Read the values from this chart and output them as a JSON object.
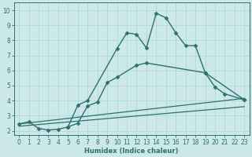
{
  "title": "",
  "xlabel": "Humidex (Indice chaleur)",
  "ylabel": "",
  "background_color": "#cce8e8",
  "grid_color": "#b0d8d8",
  "line_color": "#2d7070",
  "xlim": [
    -0.5,
    23.5
  ],
  "ylim": [
    1.7,
    10.5
  ],
  "xticks": [
    0,
    1,
    2,
    3,
    4,
    5,
    6,
    7,
    8,
    9,
    10,
    11,
    12,
    13,
    14,
    15,
    16,
    17,
    18,
    19,
    20,
    21,
    22,
    23
  ],
  "yticks": [
    2,
    3,
    4,
    5,
    6,
    7,
    8,
    9,
    10
  ],
  "series": [
    {
      "x": [
        0,
        1,
        2,
        3,
        4,
        5,
        6,
        7,
        10,
        11,
        12,
        13,
        14,
        15,
        16,
        17,
        18,
        19,
        23
      ],
      "y": [
        2.45,
        2.6,
        2.15,
        2.05,
        2.1,
        2.25,
        3.7,
        4.0,
        7.45,
        8.5,
        8.4,
        7.5,
        9.8,
        9.5,
        8.5,
        7.65,
        7.65,
        5.85,
        4.05
      ],
      "marker": "D",
      "markersize": 2.5,
      "linewidth": 1.0
    },
    {
      "x": [
        5,
        6,
        7,
        8,
        9,
        10,
        12,
        13,
        19,
        20,
        21,
        23
      ],
      "y": [
        2.25,
        2.5,
        3.65,
        3.9,
        5.2,
        5.55,
        6.35,
        6.5,
        5.85,
        4.9,
        4.45,
        4.05
      ],
      "marker": "D",
      "markersize": 2.5,
      "linewidth": 1.0
    },
    {
      "x": [
        0,
        23
      ],
      "y": [
        2.3,
        3.6
      ],
      "marker": null,
      "markersize": 0,
      "linewidth": 0.9
    },
    {
      "x": [
        0,
        23
      ],
      "y": [
        2.45,
        4.15
      ],
      "marker": null,
      "markersize": 0,
      "linewidth": 0.9
    }
  ]
}
